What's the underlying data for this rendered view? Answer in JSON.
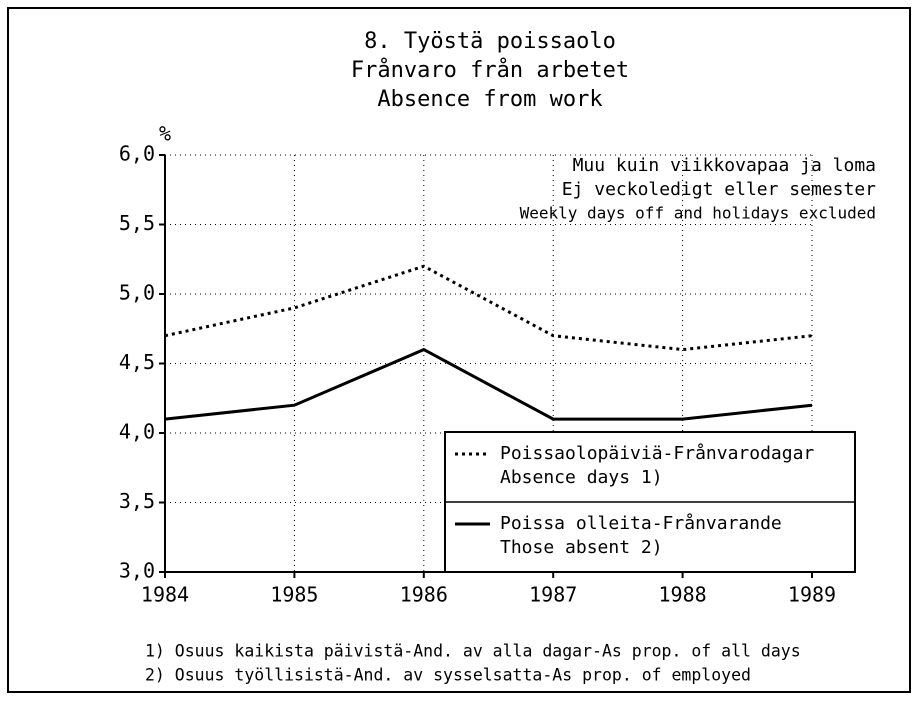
{
  "chart_data": {
    "type": "line",
    "title": [
      "8. Työstä poissaolo",
      "Frånvaro från arbetet",
      "Absence from work"
    ],
    "y_label": "%",
    "annotation": [
      "Muu kuin viikkovapaa ja loma",
      "Ej veckoledigt eller semester",
      "Weekly days off and holidays excluded"
    ],
    "x": [
      1984,
      1985,
      1986,
      1987,
      1988,
      1989
    ],
    "xlim": [
      1984,
      1989
    ],
    "xticks": [
      1984,
      1985,
      1986,
      1987,
      1988,
      1989
    ],
    "ylim": [
      3.0,
      6.0
    ],
    "yticks": [
      {
        "value": 3.0,
        "label": "3,0"
      },
      {
        "value": 3.5,
        "label": "3,5"
      },
      {
        "value": 4.0,
        "label": "4,0"
      },
      {
        "value": 4.5,
        "label": "4,5"
      },
      {
        "value": 5.0,
        "label": "5,0"
      },
      {
        "value": 5.5,
        "label": "5,5"
      },
      {
        "value": 6.0,
        "label": "6,0"
      }
    ],
    "grid": true,
    "legend": "lower right",
    "series": [
      {
        "name": [
          "Poissaolopäiviä-Frånvarodagar",
          "Absence days 1)"
        ],
        "color": "#000000",
        "style": "dotted",
        "values": [
          4.7,
          4.9,
          5.2,
          4.7,
          4.6,
          4.7
        ]
      },
      {
        "name": [
          "Poissa olleita-Frånvarande",
          "Those absent 2)"
        ],
        "color": "#000000",
        "style": "solid",
        "values": [
          4.1,
          4.2,
          4.6,
          4.1,
          4.1,
          4.2
        ]
      }
    ],
    "footnotes": [
      "1) Osuus kaikista päivistä-And. av alla dagar-As prop. of all days",
      "2) Osuus työllisistä-And. av sysselsatta-As prop. of employed"
    ]
  }
}
